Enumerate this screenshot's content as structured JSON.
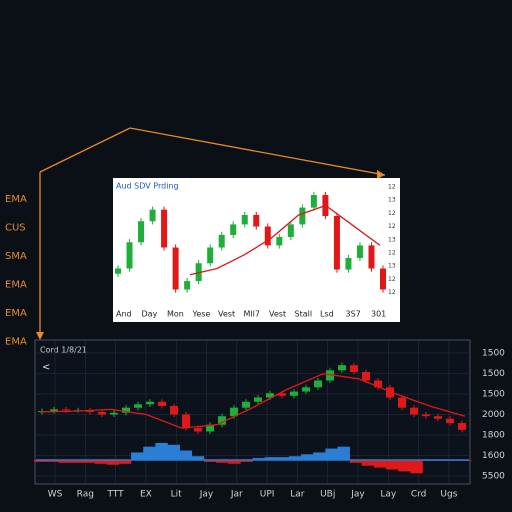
{
  "side_labels": [
    "EMA",
    "CUS",
    "SMA",
    "EMA",
    "EMA",
    "EMA"
  ],
  "inset": {
    "title": "Aud SDV Prding",
    "y_labels": [
      "12",
      "13",
      "12",
      "12",
      "13",
      "12",
      "13",
      "12",
      "12"
    ],
    "x_labels": [
      "And",
      "Day",
      "Mon",
      "Yese",
      "Vest",
      "Mll7",
      "Vest",
      "Stall",
      "Lsd",
      "3S7",
      "301"
    ],
    "up_color": "#1fae3a",
    "down_color": "#e01818",
    "ma_color": "#d81b1b",
    "candles": [
      [
        25,
        33,
        22,
        30
      ],
      [
        30,
        58,
        27,
        55
      ],
      [
        55,
        78,
        52,
        75
      ],
      [
        75,
        89,
        72,
        86
      ],
      [
        86,
        89,
        47,
        50
      ],
      [
        50,
        53,
        7,
        10
      ],
      [
        10,
        21,
        7,
        18
      ],
      [
        18,
        38,
        15,
        35
      ],
      [
        35,
        53,
        32,
        50
      ],
      [
        50,
        65,
        47,
        62
      ],
      [
        62,
        75,
        59,
        72
      ],
      [
        72,
        84,
        69,
        81
      ],
      [
        81,
        84,
        67,
        70
      ],
      [
        70,
        73,
        49,
        52
      ],
      [
        52,
        63,
        49,
        60
      ],
      [
        60,
        75,
        57,
        72
      ],
      [
        72,
        91,
        69,
        88
      ],
      [
        88,
        103,
        85,
        100
      ],
      [
        100,
        103,
        77,
        80
      ],
      [
        80,
        83,
        26,
        29
      ],
      [
        29,
        43,
        26,
        40
      ],
      [
        40,
        55,
        37,
        52
      ],
      [
        52,
        55,
        27,
        30
      ],
      [
        30,
        33,
        7,
        10
      ]
    ],
    "ma": [
      24,
      30,
      43,
      59,
      81,
      90,
      71,
      52
    ]
  },
  "main": {
    "title": "Cord 1/8/21",
    "nav": "<",
    "y_labels": [
      "1500",
      "1500",
      "1500",
      "2000",
      "1800",
      "1600",
      "5500"
    ],
    "x_labels": [
      "WS",
      "Rag",
      "TTT",
      "EX",
      "Lit",
      "Jay",
      "Jar",
      "UPI",
      "Lar",
      "UBj",
      "Jay",
      "Lay",
      "Crd",
      "Ugs"
    ],
    "up_color": "#1fae3a",
    "down_color": "#e01818",
    "ema_color": "#e01818",
    "hist_pos_color": "#2a7fd4",
    "hist_neg_color": "#e01818",
    "baseline_color": "#2a7fd4",
    "candles": [
      [
        33,
        37,
        30,
        34
      ],
      [
        34,
        39,
        31,
        36
      ],
      [
        36,
        39,
        32,
        35
      ],
      [
        35,
        38,
        32,
        35
      ],
      [
        35,
        38,
        30,
        33
      ],
      [
        33,
        36,
        27,
        30
      ],
      [
        30,
        35,
        27,
        32
      ],
      [
        32,
        41,
        29,
        38
      ],
      [
        38,
        45,
        35,
        42
      ],
      [
        42,
        48,
        39,
        45
      ],
      [
        45,
        48,
        37,
        40
      ],
      [
        40,
        43,
        27,
        30
      ],
      [
        30,
        33,
        11,
        14
      ],
      [
        14,
        17,
        7,
        10
      ],
      [
        10,
        21,
        7,
        18
      ],
      [
        18,
        31,
        15,
        28
      ],
      [
        28,
        41,
        25,
        38
      ],
      [
        38,
        48,
        35,
        45
      ],
      [
        45,
        53,
        42,
        50
      ],
      [
        50,
        58,
        47,
        55
      ],
      [
        55,
        58,
        49,
        52
      ],
      [
        52,
        60,
        49,
        57
      ],
      [
        57,
        65,
        54,
        62
      ],
      [
        62,
        73,
        59,
        70
      ],
      [
        70,
        85,
        67,
        82
      ],
      [
        82,
        91,
        79,
        88
      ],
      [
        88,
        91,
        77,
        80
      ],
      [
        80,
        83,
        67,
        70
      ],
      [
        70,
        73,
        59,
        62
      ],
      [
        62,
        65,
        47,
        50
      ],
      [
        50,
        53,
        35,
        38
      ],
      [
        38,
        41,
        27,
        30
      ],
      [
        30,
        33,
        25,
        28
      ],
      [
        28,
        31,
        22,
        25
      ],
      [
        25,
        28,
        17,
        20
      ],
      [
        20,
        23,
        9,
        12
      ]
    ],
    "ema": [
      33,
      34,
      36,
      30,
      14,
      18,
      38,
      60,
      78,
      72,
      55,
      40,
      28
    ],
    "histogram": [
      -2,
      -2,
      -3,
      -3,
      -3,
      -4,
      -5,
      -4,
      8,
      14,
      18,
      16,
      10,
      4,
      -2,
      -3,
      -4,
      -2,
      2,
      3,
      3,
      4,
      6,
      8,
      12,
      14,
      -3,
      -6,
      -8,
      -10,
      -12,
      -14,
      -1,
      -1,
      -1,
      -1
    ]
  }
}
